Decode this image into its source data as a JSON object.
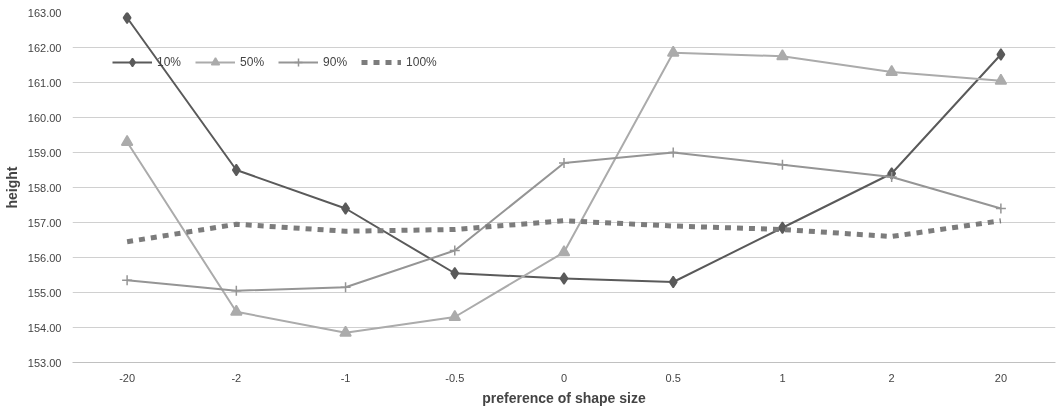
{
  "chart_data": {
    "type": "line",
    "xlabel": "preference of shape size",
    "ylabel": "height",
    "categories": [
      "-20",
      "-2",
      "-1",
      "-0.5",
      "0",
      "0.5",
      "1",
      "2",
      "20"
    ],
    "series": [
      {
        "name": "10%",
        "color": "#5a5a5a",
        "marker": "diamond",
        "line_style": "solid",
        "values": [
          162.85,
          158.5,
          157.4,
          155.55,
          155.4,
          155.3,
          156.85,
          158.4,
          161.8
        ]
      },
      {
        "name": "50%",
        "color": "#ababab",
        "marker": "triangle",
        "line_style": "solid",
        "values": [
          159.3,
          154.45,
          153.85,
          154.3,
          156.15,
          161.85,
          161.75,
          161.3,
          161.05
        ]
      },
      {
        "name": "90%",
        "color": "#959595",
        "marker": "cross",
        "line_style": "solid",
        "values": [
          155.35,
          155.05,
          155.15,
          156.2,
          158.7,
          159.0,
          158.65,
          158.3,
          157.4
        ]
      },
      {
        "name": "100%",
        "color": "#7c7c7c",
        "marker": "none",
        "line_style": "dashed",
        "values": [
          156.45,
          156.95,
          156.75,
          156.8,
          157.05,
          156.9,
          156.8,
          156.6,
          157.05
        ]
      }
    ],
    "ylim": [
      153,
      163
    ],
    "yticks": [
      {
        "value": 153,
        "label": "153.00"
      },
      {
        "value": 154,
        "label": "154.00"
      },
      {
        "value": 155,
        "label": "155.00"
      },
      {
        "value": 156,
        "label": "156.00"
      },
      {
        "value": 157,
        "label": "157.00"
      },
      {
        "value": 158,
        "label": "158.00"
      },
      {
        "value": 159,
        "label": "159.00"
      },
      {
        "value": 160,
        "label": "160.00"
      },
      {
        "value": 161,
        "label": "161.00"
      },
      {
        "value": 162,
        "label": "162.00"
      },
      {
        "value": 163,
        "label": "163.00"
      }
    ],
    "grid": "y",
    "legend": "top left"
  }
}
